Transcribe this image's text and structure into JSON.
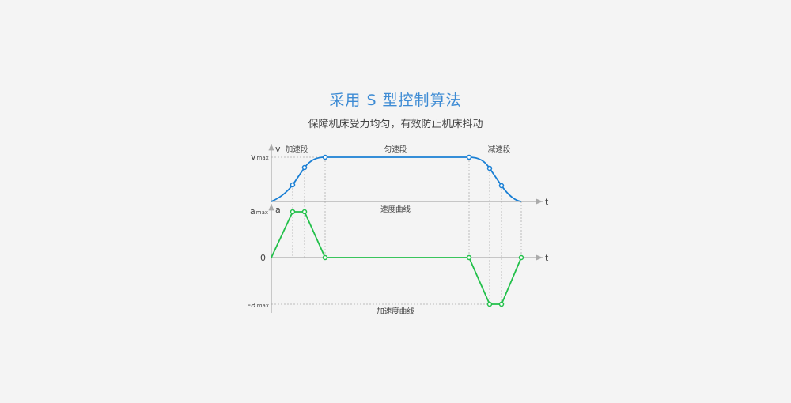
{
  "header": {
    "title": "采用 S 型控制算法",
    "subtitle": "保障机床受力均匀，有效防止机床抖动"
  },
  "diagram": {
    "v_axis_label": "v",
    "a_axis_label": "a",
    "t_label": "t",
    "vmax_label": "v",
    "amax_label": "a",
    "neg_amax_label": "-a",
    "max_sub": "max",
    "zero_label": "0",
    "phase_accel": "加速段",
    "phase_uniform": "匀速段",
    "phase_decel": "减速段",
    "velocity_caption": "速度曲线",
    "accel_caption": "加速度曲线",
    "colors": {
      "velocity": "#1a7fd4",
      "acceleration": "#22c04a",
      "axis": "#aaaaaa",
      "title": "#3d8bd4"
    }
  }
}
